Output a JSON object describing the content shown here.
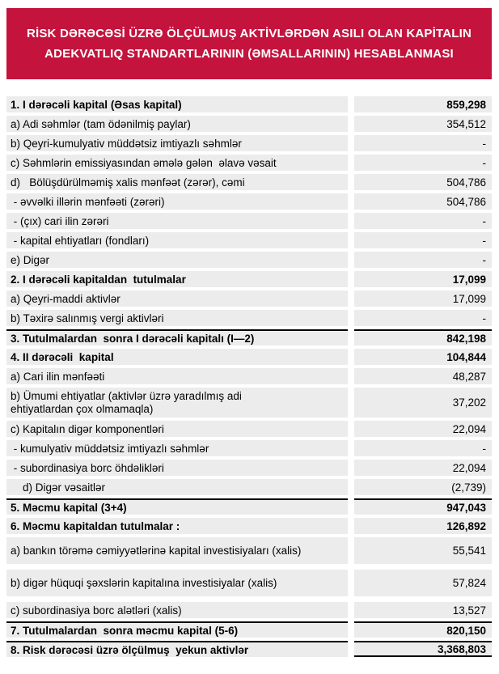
{
  "header": {
    "title_lines": [
      "RİSK DƏRƏCƏSİ ÜZRƏ ÖLÇÜLMUŞ AKTİVLƏRDƏN ASILI OLAN KAPİTALIN",
      "ADEKVATLIQ STANDARTLARININ (ƏMSALLARININ) HESABLANMASI"
    ],
    "banner_color": "#C4133D",
    "banner_text_color": "#ffffff"
  },
  "table": {
    "cell_background": "#ECECEC",
    "rows": [
      {
        "label": "1. I dərəcəli kapital (Əsas kapital)",
        "value": "859,298",
        "bold": true,
        "rowType": "std",
        "topline": false,
        "bottomline": false
      },
      {
        "label": "a) Adi səhmlər (tam ödənilmiş paylar)",
        "value": "354,512",
        "bold": false,
        "rowType": "std",
        "topline": false,
        "bottomline": false
      },
      {
        "label": "b) Qeyri-kumulyativ müddətsiz imtiyazlı səhmlər",
        "value": "-",
        "bold": false,
        "rowType": "std",
        "topline": false,
        "bottomline": false
      },
      {
        "label": "c) Səhmlərin emissiyasından əmələ gələn  əlavə vəsait",
        "value": "-",
        "bold": false,
        "rowType": "std",
        "topline": false,
        "bottomline": false
      },
      {
        "label": "d)   Bölüşdürülməmiş xalis mənfəət (zərər), cəmi",
        "value": "504,786",
        "bold": false,
        "rowType": "std",
        "topline": false,
        "bottomline": false
      },
      {
        "label": " - əvvəlki illərin mənfəəti (zərəri)",
        "value": "504,786",
        "bold": false,
        "rowType": "std",
        "topline": false,
        "bottomline": false
      },
      {
        "label": " - (çıx) cari ilin zərəri",
        "value": "-",
        "bold": false,
        "rowType": "std",
        "topline": false,
        "bottomline": false
      },
      {
        "label": " - kapital ehtiyatları (fondları)",
        "value": "-",
        "bold": false,
        "rowType": "std",
        "topline": false,
        "bottomline": false
      },
      {
        "label": "e) Digər",
        "value": "-",
        "bold": false,
        "rowType": "std",
        "topline": false,
        "bottomline": false
      },
      {
        "label": "2. I dərəcəli kapitaldan  tutulmalar",
        "value": "17,099",
        "bold": true,
        "rowType": "std",
        "topline": false,
        "bottomline": false
      },
      {
        "label": "a) Qeyri-maddi aktivlər",
        "value": "17,099",
        "bold": false,
        "rowType": "std",
        "topline": false,
        "bottomline": false
      },
      {
        "label": "b) Təxirə salınmış vergi aktivləri",
        "value": "-",
        "bold": false,
        "rowType": "std",
        "topline": false,
        "bottomline": false
      },
      {
        "label": "3. Tutulmalardan  sonra I dərəcəli kapitalı (I—2)",
        "value": "842,198",
        "bold": true,
        "rowType": "std",
        "topline": true,
        "bottomline": false
      },
      {
        "label": "4. II dərəcəli  kapital",
        "value": "104,844",
        "bold": true,
        "rowType": "std",
        "topline": false,
        "bottomline": false
      },
      {
        "label": "a) Cari ilin mənfəəti",
        "value": "48,287",
        "bold": false,
        "rowType": "std",
        "topline": false,
        "bottomline": false
      },
      {
        "label": "b) Ümumi ehtiyatlar (aktivlər üzrə yaradılmış adi ehtiyatlardan çox olmamaqla)",
        "value": "37,202",
        "bold": false,
        "rowType": "two",
        "topline": false,
        "bottomline": false
      },
      {
        "label": "c) Kapitalın digər komponentləri",
        "value": "22,094",
        "bold": false,
        "rowType": "std",
        "topline": false,
        "bottomline": false
      },
      {
        "label": " - kumulyativ müddətsiz imtiyazlı səhmlər",
        "value": "-",
        "bold": false,
        "rowType": "std",
        "topline": false,
        "bottomline": false
      },
      {
        "label": " - subordinasiya borc öhdəlikləri",
        "value": "22,094",
        "bold": false,
        "rowType": "std",
        "topline": false,
        "bottomline": false
      },
      {
        "label": "    d) Digər vəsaitlər",
        "value": "(2,739)",
        "bold": false,
        "rowType": "std",
        "topline": false,
        "bottomline": false
      },
      {
        "label": "5. Məcmu kapital (3+4)",
        "value": "947,043",
        "bold": true,
        "rowType": "std",
        "topline": true,
        "bottomline": false
      },
      {
        "label": "6. Məcmu kapitaldan tutulmalar :",
        "value": "126,892",
        "bold": true,
        "rowType": "std",
        "topline": false,
        "bottomline": false
      },
      {
        "label": "a) bankın törəmə cəmiyyətlərinə kapital investisiyaları (xalis)",
        "value": "55,541",
        "bold": false,
        "rowType": "tall",
        "topline": false,
        "bottomline": false
      },
      {
        "label": "b) digər hüquqi şəxslərin kapitalına investisiyalar (xalis)",
        "value": "57,824",
        "bold": false,
        "rowType": "tall",
        "topline": false,
        "bottomline": false
      },
      {
        "label": "c) subordinasiya borc alətləri (xalis)",
        "value": "13,527",
        "bold": false,
        "rowType": "std",
        "topline": false,
        "bottomline": false
      },
      {
        "label": "7. Tutulmalardan  sonra məcmu kapital (5-6)",
        "value": "820,150",
        "bold": true,
        "rowType": "std",
        "topline": true,
        "bottomline": false
      },
      {
        "label": "8. Risk dərəcəsi üzrə ölçülmuş  yekun aktivlər",
        "value": "3,368,803",
        "bold": true,
        "rowType": "std",
        "topline": true,
        "bottomline": true
      }
    ]
  }
}
